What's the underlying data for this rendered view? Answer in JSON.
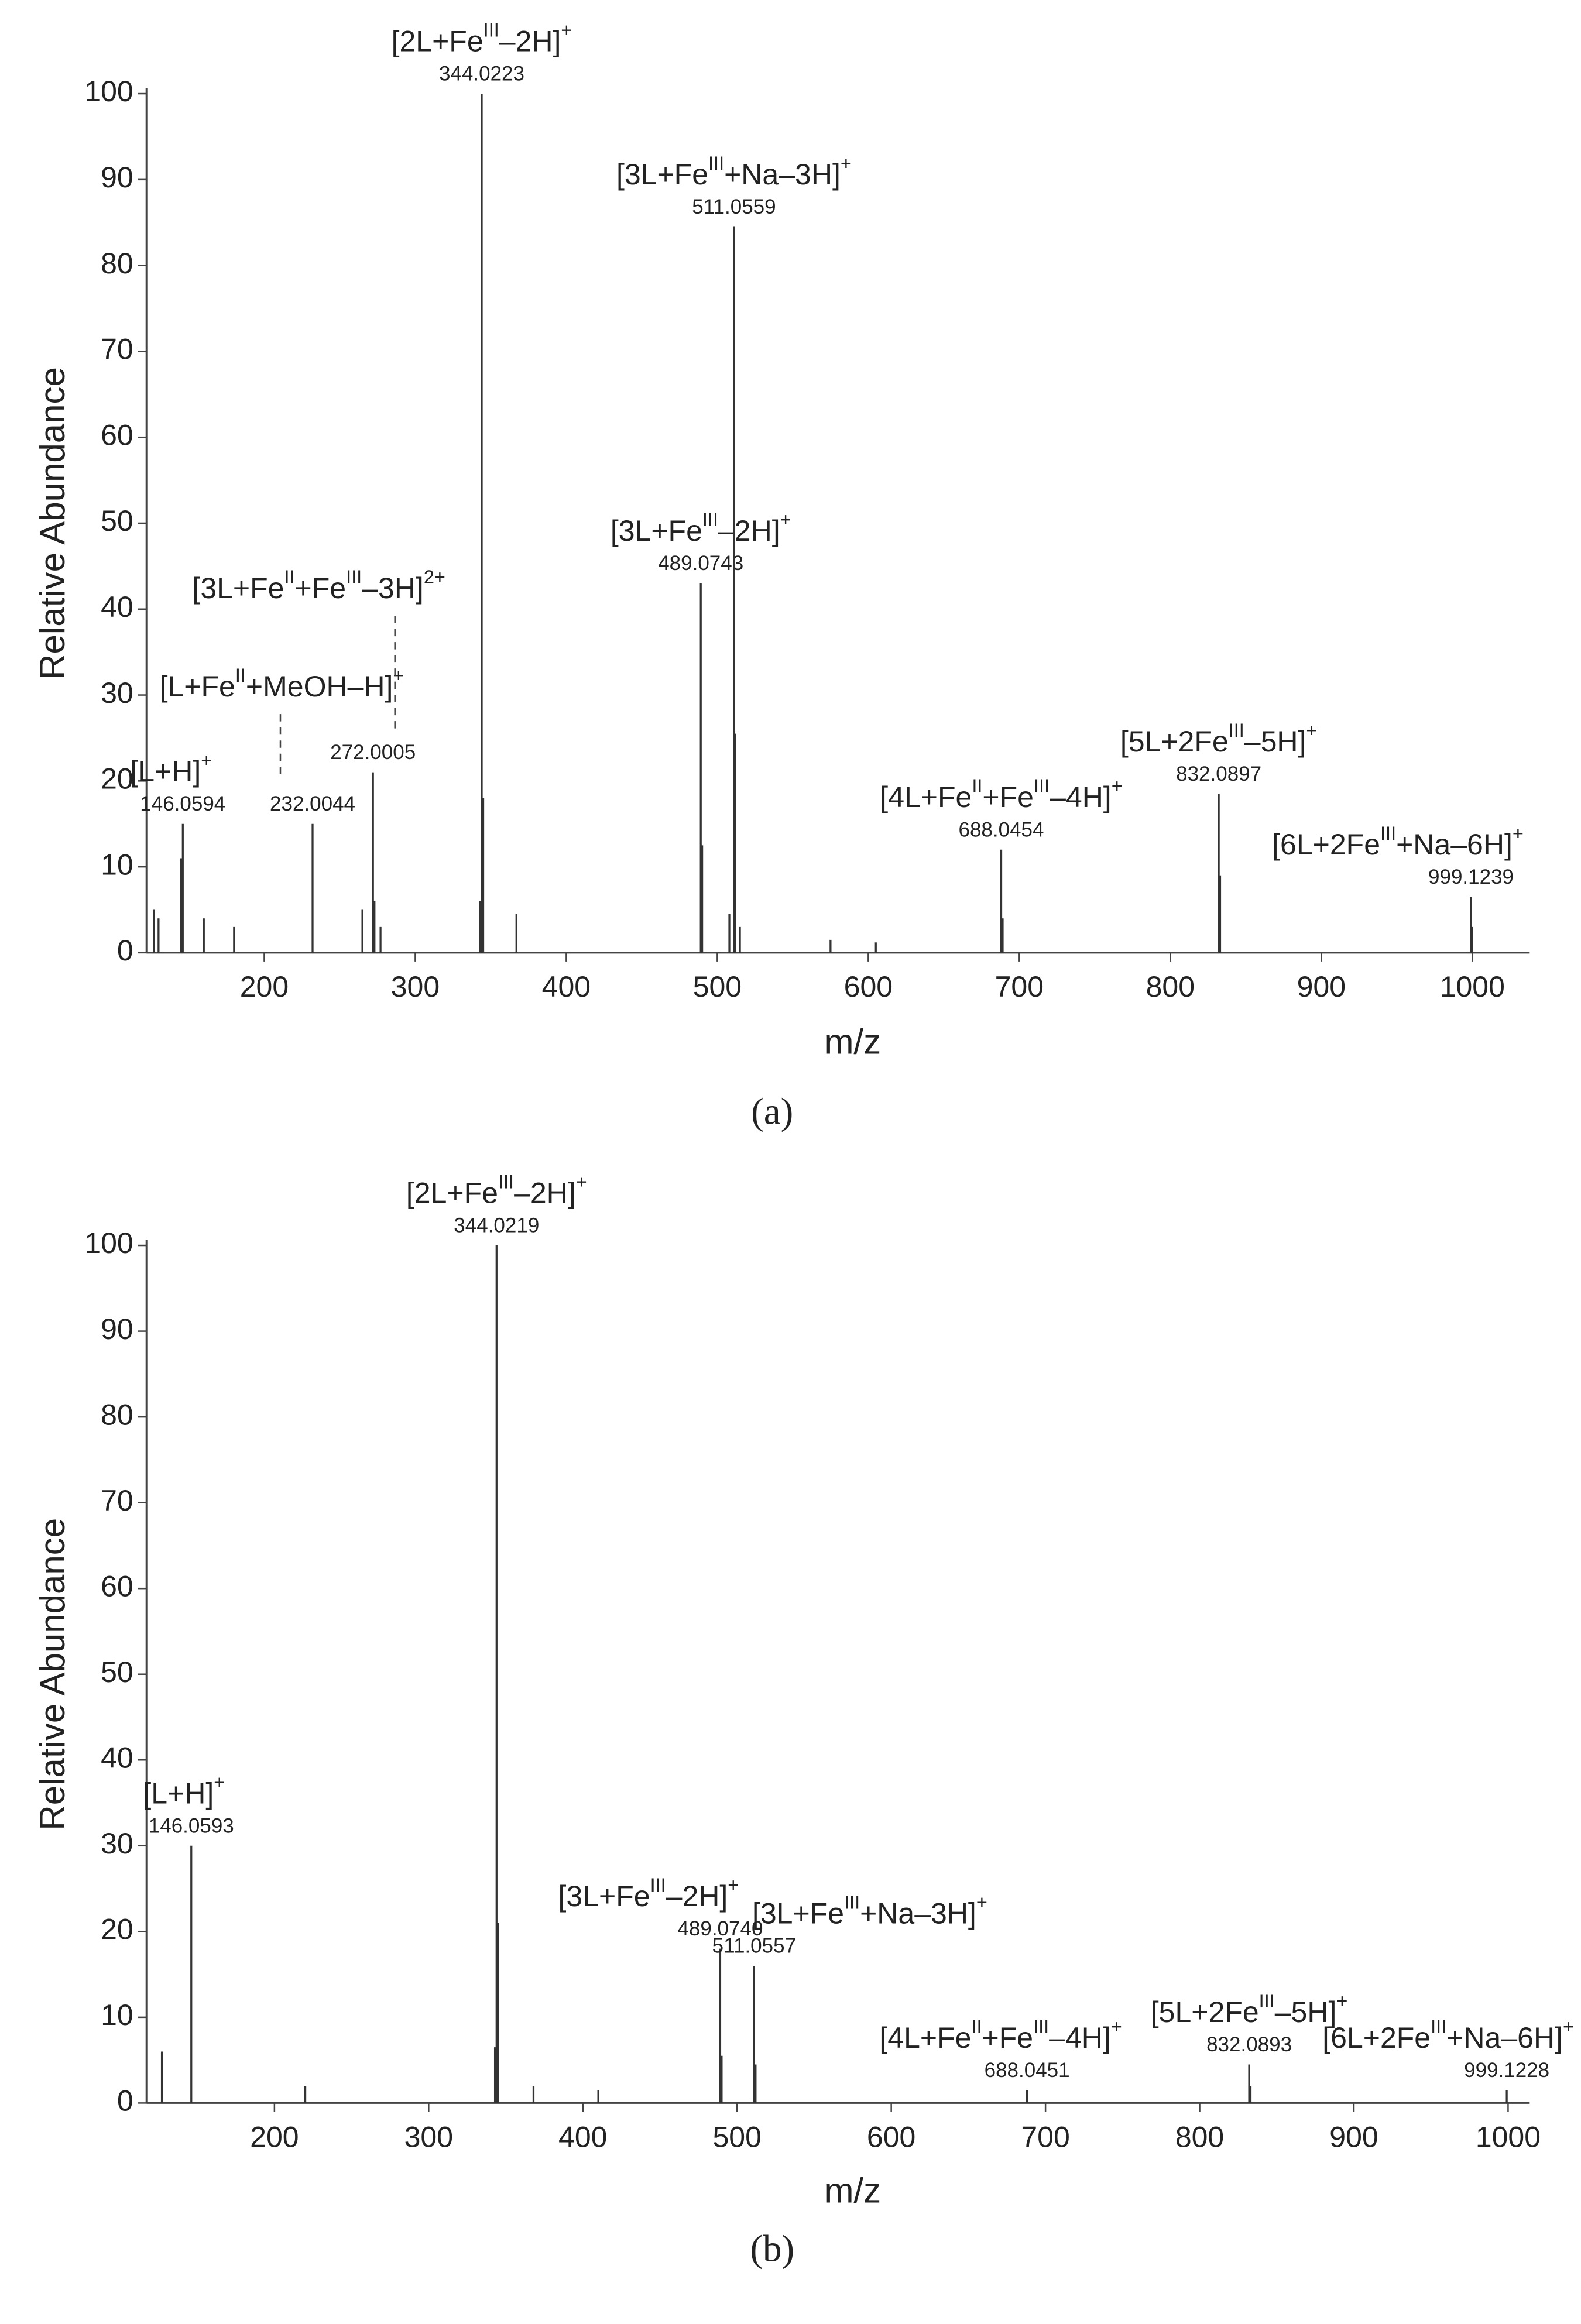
{
  "chart_data": [
    {
      "type": "stem",
      "caption": "(a)",
      "xlabel": "m/z",
      "ylabel": "Relative Abundance",
      "color": "#333333",
      "xlim": [
        122,
        1038
      ],
      "xticks": [
        200,
        300,
        400,
        500,
        600,
        700,
        800,
        900,
        1000
      ],
      "ylim": [
        0,
        100
      ],
      "yticks": [
        0,
        10,
        20,
        30,
        40,
        50,
        60,
        70,
        80,
        90,
        100
      ],
      "x": [
        146.0594,
        232.0044,
        272.0005,
        344.0223,
        489.0743,
        511.0559,
        688.0454,
        832.0897,
        999.1239,
        127,
        130,
        145,
        160,
        180,
        265,
        273,
        277,
        343,
        345,
        367,
        490,
        508,
        512,
        515,
        575,
        605,
        689,
        833,
        1000
      ],
      "values": [
        15,
        15,
        21,
        100,
        43,
        84.5,
        12,
        18.5,
        6.5,
        5,
        4,
        11,
        4,
        3,
        5,
        6,
        3,
        6,
        18,
        4.5,
        12.5,
        4.5,
        25.5,
        3,
        1.5,
        1.2,
        4,
        9,
        3
      ],
      "x_labels": [
        "146.0594",
        "232.0044",
        "272.0005",
        "344.0223",
        "489.0743",
        "511.0559",
        "688.0454",
        "832.0897",
        "999.1239",
        null,
        null,
        null,
        null,
        null,
        null,
        null,
        null,
        null,
        null,
        null,
        null,
        null,
        null,
        null,
        null,
        null,
        null,
        null,
        null
      ],
      "ion_labels": [
        [
          {
            "text": "[L+H]"
          },
          {
            "sup": "+"
          }
        ],
        [
          {
            "text": "[L+Fe"
          },
          {
            "sup": "II"
          },
          {
            "text": "+MeOH–H]"
          },
          {
            "sup": "+"
          }
        ],
        [
          {
            "text": "[3L+Fe"
          },
          {
            "sup": "II"
          },
          {
            "text": "+Fe"
          },
          {
            "sup": "III"
          },
          {
            "text": "–3H]"
          },
          {
            "sup": "2+"
          }
        ],
        [
          {
            "text": "[2L+Fe"
          },
          {
            "sup": "III"
          },
          {
            "text": "–2H]"
          },
          {
            "sup": "+"
          }
        ],
        [
          {
            "text": "[3L+Fe"
          },
          {
            "sup": "III"
          },
          {
            "text": "–2H]"
          },
          {
            "sup": "+"
          }
        ],
        [
          {
            "text": "[3L+Fe"
          },
          {
            "sup": "III"
          },
          {
            "text": "+Na–3H]"
          },
          {
            "sup": "+"
          }
        ],
        [
          {
            "text": "[4L+Fe"
          },
          {
            "sup": "II"
          },
          {
            "text": "+Fe"
          },
          {
            "sup": "III"
          },
          {
            "text": "–4H]"
          },
          {
            "sup": "+"
          }
        ],
        [
          {
            "text": "[5L+2Fe"
          },
          {
            "sup": "III"
          },
          {
            "text": "–5H]"
          },
          {
            "sup": "+"
          }
        ],
        [
          {
            "text": "[6L+2Fe"
          },
          {
            "sup": "III"
          },
          {
            "text": "+Na–6H]"
          },
          {
            "sup": "+"
          }
        ],
        null,
        null,
        null,
        null,
        null,
        null,
        null,
        null,
        null,
        null,
        null,
        null,
        null,
        null,
        null,
        null,
        null,
        null,
        null,
        null
      ]
    },
    {
      "type": "stem",
      "caption": "(b)",
      "xlabel": "m/z",
      "ylabel": "Relative Abundance",
      "color": "#333333",
      "xlim": [
        117,
        1014
      ],
      "xticks": [
        200,
        300,
        400,
        500,
        600,
        700,
        800,
        900,
        1000
      ],
      "ylim": [
        0,
        100
      ],
      "yticks": [
        0,
        10,
        20,
        30,
        40,
        50,
        60,
        70,
        80,
        90,
        100
      ],
      "x": [
        146.0593,
        344.0219,
        489.074,
        511.0557,
        688.0451,
        832.0893,
        999.1228,
        127,
        220,
        343,
        345,
        368,
        410,
        490,
        512,
        833
      ],
      "values": [
        30,
        100,
        18,
        16,
        1.5,
        4.5,
        1.5,
        6,
        2,
        6.5,
        21,
        2,
        1.5,
        5.5,
        4.5,
        2
      ],
      "x_labels": [
        "146.0593",
        "344.0219",
        "489.0740",
        "511.0557",
        "688.0451",
        "832.0893",
        "999.1228",
        null,
        null,
        null,
        null,
        null,
        null,
        null,
        null,
        null
      ],
      "ion_labels": [
        [
          {
            "text": "[L+H]"
          },
          {
            "sup": "+"
          }
        ],
        [
          {
            "text": "[2L+Fe"
          },
          {
            "sup": "III"
          },
          {
            "text": "–2H]"
          },
          {
            "sup": "+"
          }
        ],
        [
          {
            "text": "[3L+Fe"
          },
          {
            "sup": "III"
          },
          {
            "text": "–2H]"
          },
          {
            "sup": "+"
          }
        ],
        [
          {
            "text": "[3L+Fe"
          },
          {
            "sup": "III"
          },
          {
            "text": "+Na–3H]"
          },
          {
            "sup": "+"
          }
        ],
        [
          {
            "text": "[4L+Fe"
          },
          {
            "sup": "II"
          },
          {
            "text": "+Fe"
          },
          {
            "sup": "III"
          },
          {
            "text": "–4H]"
          },
          {
            "sup": "+"
          }
        ],
        [
          {
            "text": "[5L+2Fe"
          },
          {
            "sup": "III"
          },
          {
            "text": "–5H]"
          },
          {
            "sup": "+"
          }
        ],
        [
          {
            "text": "[6L+2Fe"
          },
          {
            "sup": "III"
          },
          {
            "text": "+Na–6H]"
          },
          {
            "sup": "+"
          }
        ],
        null,
        null,
        null,
        null,
        null,
        null,
        null,
        null,
        null
      ]
    }
  ]
}
